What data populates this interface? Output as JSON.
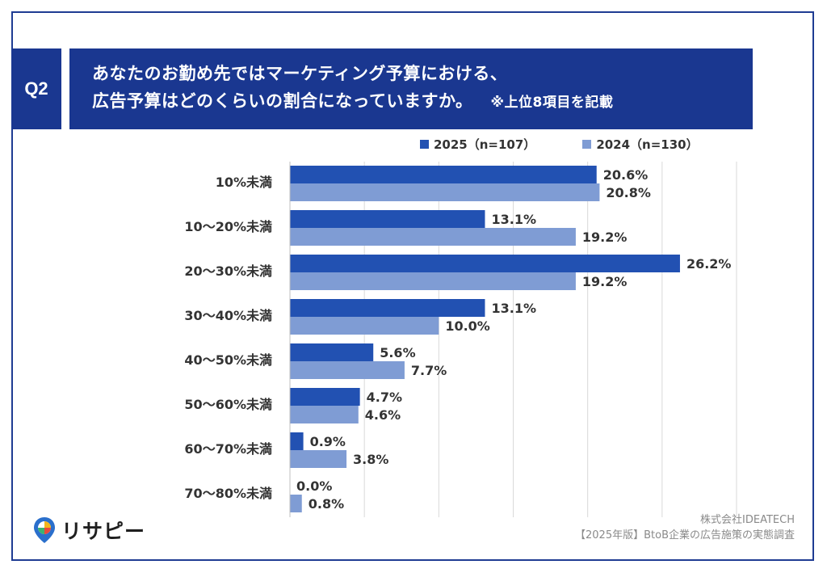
{
  "question": {
    "badge": "Q2",
    "title_line1": "あなたのお勤め先ではマーケティング予算における、",
    "title_line2": "広告予算はどのくらいの割合になっていますか。",
    "note": "※上位8項目を記載"
  },
  "chart_data": {
    "type": "bar",
    "orientation": "horizontal",
    "categories": [
      "10%未満",
      "10～20%未満",
      "20～30%未満",
      "30～40%未満",
      "40～50%未満",
      "50～60%未満",
      "60～70%未満",
      "70～80%未満"
    ],
    "series": [
      {
        "name": "2025（n=107）",
        "color": "#2251b2",
        "values": [
          20.6,
          13.1,
          26.2,
          13.1,
          5.6,
          4.7,
          0.9,
          0.0
        ]
      },
      {
        "name": "2024（n=130）",
        "color": "#7f9cd4",
        "values": [
          20.8,
          19.2,
          19.2,
          10.0,
          7.7,
          4.6,
          3.8,
          0.8
        ]
      }
    ],
    "value_labels": {
      "2025": [
        "20.6%",
        "13.1%",
        "26.2%",
        "13.1%",
        "5.6%",
        "4.7%",
        "0.9%",
        "0.0%"
      ],
      "2024": [
        "20.8%",
        "19.2%",
        "19.2%",
        "10.0%",
        "7.7%",
        "4.6%",
        "3.8%",
        "0.8%"
      ]
    },
    "xlim": [
      0,
      30
    ],
    "grid_step": 5,
    "grid": true,
    "legend_position": "top-right"
  },
  "logo": {
    "text": "リサピー"
  },
  "source": {
    "line1": "株式会社IDEATECH",
    "line2": "【2025年版】BtoB企業の広告施策の実態調査"
  },
  "colors": {
    "header_bg": "#1a3790",
    "frame": "#1f3c93",
    "series_2025": "#2251b2",
    "series_2024": "#7f9cd4",
    "grid": "#d9d9d9"
  }
}
